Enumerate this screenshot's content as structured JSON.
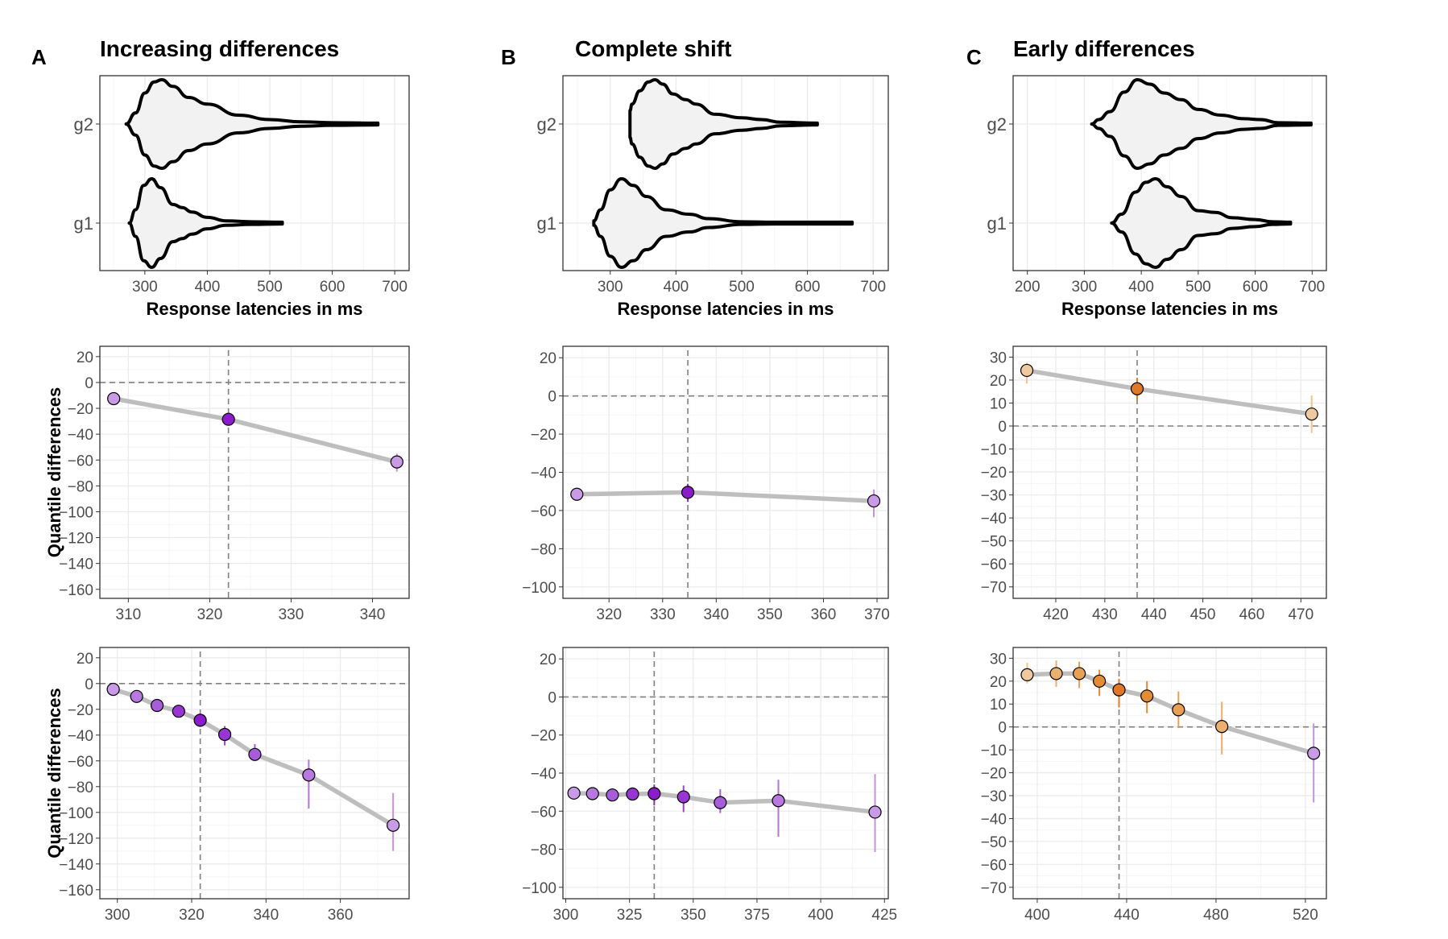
{
  "chart_data": [
    {
      "id": "A",
      "panel_letter": "A",
      "title": "Increasing differences",
      "violin": {
        "type": "violin",
        "xlabel": "Response latencies in ms",
        "xlim": [
          228,
          723
        ],
        "xticks": [
          300,
          400,
          500,
          600,
          700
        ],
        "groups": [
          {
            "name": "g2",
            "min": 270,
            "max": 673,
            "profile": [
              [
                270,
                0
              ],
              [
                285,
                0.25
              ],
              [
                300,
                0.7
              ],
              [
                315,
                0.95
              ],
              [
                327,
                1.0
              ],
              [
                345,
                0.85
              ],
              [
                370,
                0.6
              ],
              [
                400,
                0.45
              ],
              [
                450,
                0.2
              ],
              [
                500,
                0.1
              ],
              [
                550,
                0.05
              ],
              [
                600,
                0.03
              ],
              [
                673,
                0.02
              ]
            ]
          },
          {
            "name": "g1",
            "min": 275,
            "max": 520,
            "profile": [
              [
                275,
                0
              ],
              [
                285,
                0.3
              ],
              [
                298,
                0.85
              ],
              [
                311,
                1.0
              ],
              [
                325,
                0.8
              ],
              [
                345,
                0.42
              ],
              [
                360,
                0.35
              ],
              [
                375,
                0.25
              ],
              [
                400,
                0.13
              ],
              [
                430,
                0.05
              ],
              [
                470,
                0.03
              ],
              [
                520,
                0.02
              ]
            ]
          }
        ]
      },
      "shift3": {
        "type": "scatter",
        "xlabel": "",
        "ylabel": "Quantile differences",
        "xlim": [
          306.5,
          344.5
        ],
        "ylim": [
          -167,
          28
        ],
        "xticks": [
          310,
          320,
          330,
          340
        ],
        "yticks": [
          20,
          0,
          -20,
          -40,
          -60,
          -80,
          -100,
          -120,
          -140,
          -160
        ],
        "median_x": 322.3,
        "points": [
          {
            "x": 308.2,
            "y": -12.5,
            "lo": -13,
            "hi": -12,
            "shade": "light"
          },
          {
            "x": 322.3,
            "y": -28.5,
            "lo": -30,
            "hi": -27,
            "shade": "dark"
          },
          {
            "x": 343.0,
            "y": -61.5,
            "lo": -69,
            "hi": -55,
            "shade": "light"
          }
        ]
      },
      "shift9": {
        "type": "scatter",
        "xlabel": "",
        "ylabel": "Quantile differences",
        "xlim": [
          295.3,
          378.5
        ],
        "ylim": [
          -167,
          28
        ],
        "xticks": [
          300,
          320,
          340,
          360
        ],
        "yticks": [
          20,
          0,
          -20,
          -40,
          -60,
          -80,
          -100,
          -120,
          -140,
          -160
        ],
        "median_x": 322.3,
        "points": [
          {
            "x": 298.9,
            "y": -4.5,
            "lo": -5,
            "hi": -4,
            "shade": 1
          },
          {
            "x": 305.2,
            "y": -10,
            "lo": -11,
            "hi": -9,
            "shade": 2
          },
          {
            "x": 310.7,
            "y": -17,
            "lo": -18,
            "hi": -16,
            "shade": 3
          },
          {
            "x": 316.5,
            "y": -21.5,
            "lo": -23,
            "hi": -20,
            "shade": 4
          },
          {
            "x": 322.3,
            "y": -28.5,
            "lo": -30,
            "hi": -27,
            "shade": 5
          },
          {
            "x": 328.9,
            "y": -39.5,
            "lo": -48,
            "hi": -33,
            "shade": 4
          },
          {
            "x": 337.0,
            "y": -55,
            "lo": -60,
            "hi": -47,
            "shade": 3
          },
          {
            "x": 351.5,
            "y": -71,
            "lo": -97,
            "hi": -59,
            "shade": 2
          },
          {
            "x": 374.2,
            "y": -110,
            "lo": -130,
            "hi": -85,
            "shade": 1
          }
        ]
      }
    },
    {
      "id": "B",
      "panel_letter": "B",
      "title": "Complete shift",
      "violin": {
        "type": "violin",
        "xlabel": "Response latencies in ms",
        "xlim": [
          228,
          723
        ],
        "xticks": [
          300,
          400,
          500,
          600,
          700
        ],
        "groups": [
          {
            "name": "g2",
            "min": 330,
            "max": 615,
            "profile": [
              [
                330,
                0.3
              ],
              [
                333,
                0.45
              ],
              [
                345,
                0.75
              ],
              [
                358,
                0.95
              ],
              [
                368,
                1.0
              ],
              [
                380,
                0.9
              ],
              [
                395,
                0.68
              ],
              [
                415,
                0.55
              ],
              [
                430,
                0.45
              ],
              [
                460,
                0.22
              ],
              [
                500,
                0.14
              ],
              [
                530,
                0.1
              ],
              [
                560,
                0.04
              ],
              [
                615,
                0.02
              ]
            ]
          },
          {
            "name": "g1",
            "min": 275,
            "max": 668,
            "profile": [
              [
                275,
                0.05
              ],
              [
                285,
                0.3
              ],
              [
                300,
                0.75
              ],
              [
                317,
                1.0
              ],
              [
                335,
                0.85
              ],
              [
                355,
                0.6
              ],
              [
                385,
                0.3
              ],
              [
                420,
                0.2
              ],
              [
                450,
                0.1
              ],
              [
                500,
                0.03
              ],
              [
                550,
                0.02
              ],
              [
                668,
                0.02
              ]
            ]
          }
        ]
      },
      "shift3": {
        "type": "scatter",
        "xlabel": "",
        "ylabel": "",
        "xlim": [
          311.4,
          372.1
        ],
        "ylim": [
          -106,
          26
        ],
        "xticks": [
          320,
          330,
          340,
          350,
          360,
          370
        ],
        "yticks": [
          20,
          0,
          -20,
          -40,
          -60,
          -80,
          -100
        ],
        "median_x": 334.7,
        "points": [
          {
            "x": 314.0,
            "y": -51.5,
            "lo": -52,
            "hi": -51,
            "shade": "light"
          },
          {
            "x": 334.7,
            "y": -50.5,
            "lo": -55.5,
            "hi": -46,
            "shade": "dark"
          },
          {
            "x": 369.4,
            "y": -55,
            "lo": -63.5,
            "hi": -49,
            "shade": "light"
          }
        ]
      },
      "shift9": {
        "type": "scatter",
        "xlabel": "",
        "ylabel": "",
        "xlim": [
          298.9,
          426.5
        ],
        "ylim": [
          -106,
          26
        ],
        "xticks": [
          300,
          325,
          350,
          375,
          400,
          425
        ],
        "yticks": [
          20,
          0,
          -20,
          -40,
          -60,
          -80,
          -100
        ],
        "median_x": 334.7,
        "points": [
          {
            "x": 303.2,
            "y": -50.5,
            "lo": -51,
            "hi": -50,
            "shade": 1
          },
          {
            "x": 310.5,
            "y": -50.8,
            "lo": -52,
            "hi": -49.5,
            "shade": 2
          },
          {
            "x": 318.3,
            "y": -51.5,
            "lo": -54,
            "hi": -48,
            "shade": 3
          },
          {
            "x": 326.2,
            "y": -51,
            "lo": -54,
            "hi": -47.5,
            "shade": 4
          },
          {
            "x": 334.7,
            "y": -50.8,
            "lo": -57,
            "hi": -46,
            "shade": 5
          },
          {
            "x": 346.2,
            "y": -52.5,
            "lo": -60.5,
            "hi": -46.5,
            "shade": 4
          },
          {
            "x": 360.6,
            "y": -55.5,
            "lo": -61,
            "hi": -48.5,
            "shade": 3
          },
          {
            "x": 383.4,
            "y": -54.5,
            "lo": -73.5,
            "hi": -43.5,
            "shade": 2
          },
          {
            "x": 421.3,
            "y": -60.5,
            "lo": -81.5,
            "hi": -40.5,
            "shade": 1
          }
        ]
      }
    },
    {
      "id": "C",
      "panel_letter": "C",
      "title": "Early differences",
      "violin": {
        "type": "violin",
        "xlabel": "Response latencies in ms",
        "xlim": [
          175,
          725
        ],
        "xticks": [
          200,
          300,
          400,
          500,
          600,
          700
        ],
        "groups": [
          {
            "name": "g2",
            "min": 313,
            "max": 698,
            "profile": [
              [
                313,
                0
              ],
              [
                325,
                0.1
              ],
              [
                345,
                0.28
              ],
              [
                370,
                0.72
              ],
              [
                393,
                1.0
              ],
              [
                415,
                0.9
              ],
              [
                440,
                0.7
              ],
              [
                470,
                0.55
              ],
              [
                500,
                0.33
              ],
              [
                540,
                0.2
              ],
              [
                580,
                0.12
              ],
              [
                610,
                0.1
              ],
              [
                640,
                0.03
              ],
              [
                698,
                0.02
              ]
            ]
          },
          {
            "name": "g1",
            "min": 348,
            "max": 662,
            "profile": [
              [
                348,
                0
              ],
              [
                365,
                0.2
              ],
              [
                390,
                0.7
              ],
              [
                408,
                0.92
              ],
              [
                425,
                1.0
              ],
              [
                445,
                0.82
              ],
              [
                470,
                0.6
              ],
              [
                500,
                0.28
              ],
              [
                530,
                0.24
              ],
              [
                560,
                0.12
              ],
              [
                600,
                0.08
              ],
              [
                630,
                0.03
              ],
              [
                662,
                0.02
              ]
            ]
          }
        ]
      },
      "shift3": {
        "type": "scatter",
        "xlabel": "",
        "ylabel": "",
        "xlim": [
          411.3,
          475.2
        ],
        "ylim": [
          -75,
          34.7
        ],
        "xticks": [
          420,
          430,
          440,
          450,
          460,
          470
        ],
        "yticks": [
          30,
          20,
          10,
          0,
          -10,
          -20,
          -30,
          -40,
          -50,
          -60,
          -70
        ],
        "median_x": 436.6,
        "points": [
          {
            "x": 414.1,
            "y": 24.2,
            "lo": 18.5,
            "hi": 27.5,
            "shade": "light"
          },
          {
            "x": 436.6,
            "y": 16.2,
            "lo": 11,
            "hi": 21,
            "shade": "dark"
          },
          {
            "x": 472.2,
            "y": 5.2,
            "lo": -3,
            "hi": 13.3,
            "shade": "light"
          }
        ]
      },
      "shift9": {
        "type": "scatter",
        "xlabel": "",
        "ylabel": "",
        "xlim": [
          389.2,
          529.4
        ],
        "ylim": [
          -75,
          34.7
        ],
        "xticks": [
          400,
          440,
          480,
          520
        ],
        "yticks": [
          30,
          20,
          10,
          0,
          -10,
          -20,
          -30,
          -40,
          -50,
          -60,
          -70
        ],
        "median_x": 436.6,
        "points": [
          {
            "x": 395.5,
            "y": 22.8,
            "lo": 19,
            "hi": 28,
            "shade": 1
          },
          {
            "x": 408.5,
            "y": 23.3,
            "lo": 17.5,
            "hi": 29,
            "shade": 2
          },
          {
            "x": 418.8,
            "y": 23.3,
            "lo": 17,
            "hi": 28.5,
            "shade": 3
          },
          {
            "x": 427.8,
            "y": 20,
            "lo": 13.5,
            "hi": 25,
            "shade": 4
          },
          {
            "x": 436.6,
            "y": 16.2,
            "lo": 8.5,
            "hi": 21,
            "shade": 5
          },
          {
            "x": 449.1,
            "y": 13.5,
            "lo": 6,
            "hi": 20,
            "shade": 4
          },
          {
            "x": 463.2,
            "y": 7.5,
            "lo": -0.5,
            "hi": 15.5,
            "shade": 3
          },
          {
            "x": 482.6,
            "y": 0.2,
            "lo": -12,
            "hi": 11,
            "shade": 2
          },
          {
            "x": 523.7,
            "y": -11.5,
            "lo": -33,
            "hi": 1.5,
            "shade": 1,
            "negative": true
          }
        ]
      }
    }
  ],
  "colors": {
    "violin_fill": "#f2f2f2",
    "violin_stroke": "#000000",
    "grid_major": "#ebebeb",
    "grid_minor": "#f5f5f5",
    "panel_border": "#333333",
    "line": "#bebebe",
    "ref_line": "#808080",
    "purple_shades": [
      "#c99be6",
      "#b878e0",
      "#a75cd9",
      "#9836d4",
      "#8a1ccc"
    ],
    "orange_shades": [
      "#f0c99e",
      "#ebb070",
      "#e8a055",
      "#e38c37",
      "#e0782a"
    ],
    "purple_err": [
      "#c88fe8",
      "#b872e0",
      "#a75cd9",
      "#9a44d6",
      "#8e2bd0"
    ],
    "orange_err": [
      "#f5c28a",
      "#efad65",
      "#ec9e4c",
      "#e88a35",
      "#e07c2a"
    ]
  }
}
